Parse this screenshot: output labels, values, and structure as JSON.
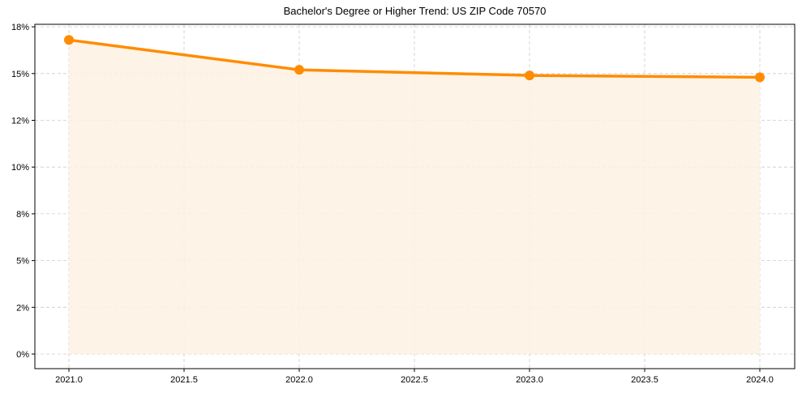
{
  "chart_data": {
    "type": "line",
    "title": "Bachelor's Degree or Higher Trend: US ZIP Code 70570",
    "xlabel": "",
    "ylabel": "",
    "x": [
      2021.0,
      2022.0,
      2023.0,
      2024.0
    ],
    "series": [
      {
        "name": "Bachelor's Degree or Higher (%)",
        "values": [
          16.8,
          15.2,
          14.9,
          14.8
        ],
        "color": "#FF8C00",
        "fill": "#FEF1E3",
        "marker": "circle"
      }
    ],
    "xticks": [
      2021.0,
      2021.5,
      2022.0,
      2022.5,
      2023.0,
      2023.5,
      2024.0
    ],
    "xtick_labels": [
      "2021.0",
      "2021.5",
      "2022.0",
      "2022.5",
      "2023.0",
      "2023.5",
      "2024.0"
    ],
    "yticks": [
      0,
      2.5,
      5,
      7.5,
      10,
      12.5,
      15,
      17.5
    ],
    "ytick_labels": [
      "0%",
      "2%",
      "5%",
      "8%",
      "10%",
      "12%",
      "15%",
      "18%"
    ],
    "xlim": [
      2020.85,
      2024.15
    ],
    "ylim": [
      -0.8,
      17.6
    ],
    "grid": true,
    "grid_style": "dashed",
    "legend": null
  }
}
